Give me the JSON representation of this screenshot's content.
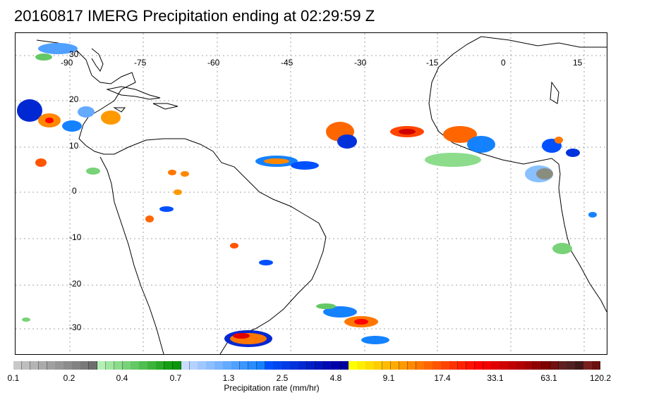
{
  "title": "20160817 IMERG Precipitation ending at 02:29:59 Z",
  "map": {
    "lon_labels": [
      "-90",
      "-75",
      "-60",
      "-45",
      "-30",
      "-15",
      "0",
      "15"
    ],
    "lat_labels": [
      "30",
      "20",
      "10",
      "0",
      "-10",
      "-20",
      "-30"
    ],
    "grid_style": "dotted",
    "coastline_color": "#000000"
  },
  "colorbar": {
    "title": "Precipitation rate (mm/hr)",
    "tick_labels": [
      "0.1",
      "0.2",
      "0.4",
      "0.7",
      "1.3",
      "2.5",
      "4.8",
      "9.1",
      "17.4",
      "33.1",
      "63.1",
      "120.2"
    ],
    "colors": [
      "#c8c8c8",
      "#bebebe",
      "#b4b4b4",
      "#aaaaaa",
      "#a0a0a0",
      "#969696",
      "#8c8c8c",
      "#828282",
      "#787878",
      "#6e6e6e",
      "#b4f0b4",
      "#a0e6a0",
      "#8cdc8c",
      "#78d278",
      "#64c864",
      "#50be50",
      "#3cb43c",
      "#28aa28",
      "#149e14",
      "#0a960a",
      "#c8dcff",
      "#b4d2ff",
      "#a0c8ff",
      "#8cbeff",
      "#78b4ff",
      "#64aaff",
      "#50a0ff",
      "#3c96ff",
      "#288cff",
      "#1482ff",
      "#0050ff",
      "#0046f0",
      "#003ce6",
      "#0032dc",
      "#0028d2",
      "#001ec8",
      "#0014be",
      "#000ab4",
      "#0000aa",
      "#0000a0",
      "#ffff00",
      "#ffee00",
      "#ffdd00",
      "#ffcc00",
      "#ffbb00",
      "#ffaa00",
      "#ff9900",
      "#ff8800",
      "#ff7700",
      "#ff6600",
      "#ff5500",
      "#ff4400",
      "#ff3300",
      "#ff2200",
      "#ff1100",
      "#ff0000",
      "#f00000",
      "#e00000",
      "#d00000",
      "#c00000",
      "#b00000",
      "#a00000",
      "#900000",
      "#800000",
      "#701010",
      "#602020",
      "#502020",
      "#401818",
      "#7a1f1f",
      "#6a1010"
    ]
  }
}
